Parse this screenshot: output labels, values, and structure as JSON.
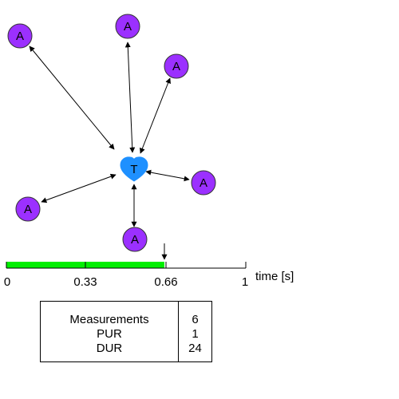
{
  "diagram": {
    "colors": {
      "anchor_fill": "#9b30ff",
      "anchor_stroke": "#333333",
      "tag_fill": "#1e90ff",
      "progress_fill": "#00ee00",
      "line": "#000000"
    },
    "tag": {
      "label": "T",
      "icon": "heart-shaped-tag-icon"
    },
    "anchors": [
      {
        "label": "A"
      },
      {
        "label": "A"
      },
      {
        "label": "A"
      },
      {
        "label": "A"
      },
      {
        "label": "A"
      },
      {
        "label": "A"
      }
    ]
  },
  "timeline": {
    "ticks": [
      "0",
      "0.33",
      "0.66",
      "1"
    ],
    "progress": 0.66,
    "marker": 0.66,
    "axis_title": "time [s]"
  },
  "stats": {
    "rows": [
      {
        "name": "Measurements",
        "value": "6"
      },
      {
        "name": "PUR",
        "value": "1"
      },
      {
        "name": "DUR",
        "value": "24"
      }
    ]
  }
}
